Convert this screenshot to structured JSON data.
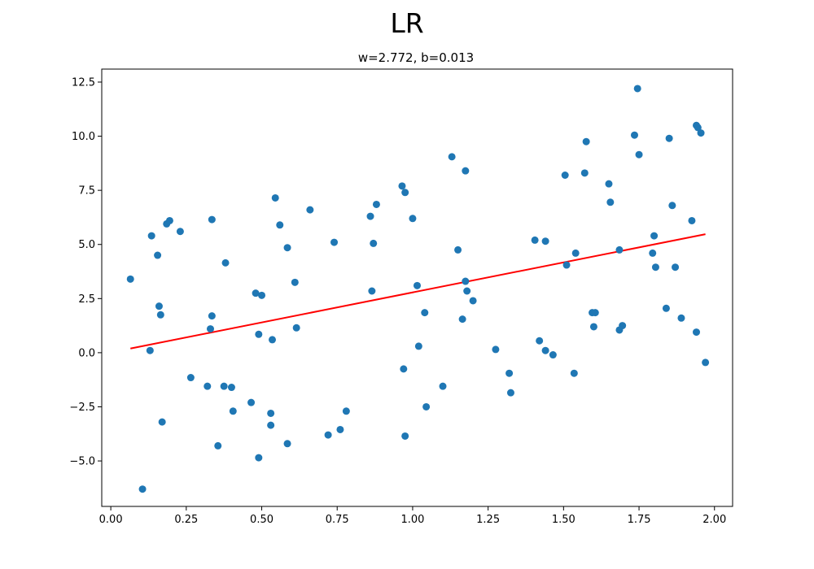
{
  "figure": {
    "suptitle": "LR"
  },
  "chart_data": {
    "type": "scatter",
    "title": "w=2.772, b=0.013",
    "xlabel": "",
    "ylabel": "",
    "xlim": [
      -0.03,
      2.06
    ],
    "ylim": [
      -7.1,
      13.1
    ],
    "xticks": [
      "0.00",
      "0.25",
      "0.50",
      "0.75",
      "1.00",
      "1.25",
      "1.50",
      "1.75",
      "2.00"
    ],
    "xtick_values": [
      0,
      0.25,
      0.5,
      0.75,
      1.0,
      1.25,
      1.5,
      1.75,
      2.0
    ],
    "yticks": [
      "−5.0",
      "−2.5",
      "0.0",
      "2.5",
      "5.0",
      "7.5",
      "10.0",
      "12.5"
    ],
    "ytick_values": [
      -5.0,
      -2.5,
      0.0,
      2.5,
      5.0,
      7.5,
      10.0,
      12.5
    ],
    "grid": false,
    "colors": {
      "points": "#1f77b4",
      "fit_line": "#ff0000"
    },
    "fit_line": {
      "w": 2.772,
      "b": 0.013,
      "x": [
        0.065,
        1.97
      ]
    },
    "points": {
      "x": [
        0.065,
        0.105,
        0.13,
        0.135,
        0.155,
        0.16,
        0.165,
        0.17,
        0.185,
        0.195,
        0.23,
        0.265,
        0.32,
        0.33,
        0.335,
        0.335,
        0.355,
        0.375,
        0.38,
        0.4,
        0.405,
        0.465,
        0.48,
        0.49,
        0.49,
        0.5,
        0.53,
        0.53,
        0.535,
        0.545,
        0.56,
        0.585,
        0.585,
        0.61,
        0.615,
        0.66,
        0.72,
        0.74,
        0.76,
        0.78,
        0.86,
        0.865,
        0.87,
        0.88,
        0.965,
        0.97,
        0.975,
        0.975,
        1.0,
        1.015,
        1.02,
        1.04,
        1.045,
        1.1,
        1.13,
        1.15,
        1.165,
        1.175,
        1.175,
        1.18,
        1.2,
        1.275,
        1.32,
        1.325,
        1.405,
        1.42,
        1.44,
        1.44,
        1.465,
        1.505,
        1.51,
        1.535,
        1.54,
        1.57,
        1.575,
        1.595,
        1.6,
        1.605,
        1.65,
        1.655,
        1.685,
        1.685,
        1.695,
        1.735,
        1.745,
        1.75,
        1.795,
        1.8,
        1.805,
        1.84,
        1.85,
        1.86,
        1.87,
        1.89,
        1.925,
        1.94,
        1.94,
        1.945,
        1.955,
        1.97
      ],
      "y": [
        3.4,
        -6.3,
        0.1,
        5.4,
        4.5,
        2.15,
        1.75,
        -3.2,
        5.95,
        6.1,
        5.6,
        -1.15,
        -1.55,
        1.1,
        1.7,
        6.15,
        -4.3,
        -1.55,
        4.15,
        -1.6,
        -2.7,
        -2.3,
        2.75,
        0.85,
        -4.85,
        2.65,
        -2.8,
        -3.35,
        0.6,
        7.15,
        5.9,
        4.85,
        -4.2,
        3.25,
        1.15,
        6.6,
        -3.8,
        5.1,
        -3.55,
        -2.7,
        6.3,
        2.85,
        5.05,
        6.85,
        7.7,
        -0.75,
        7.4,
        -3.85,
        6.2,
        3.1,
        0.3,
        1.85,
        -2.5,
        -1.55,
        9.05,
        4.75,
        1.55,
        3.3,
        8.4,
        2.85,
        2.4,
        0.15,
        -0.95,
        -1.85,
        5.2,
        0.55,
        5.15,
        0.1,
        -0.1,
        8.2,
        4.05,
        -0.95,
        4.6,
        8.3,
        9.75,
        1.85,
        1.2,
        1.85,
        7.8,
        6.95,
        4.75,
        1.05,
        1.25,
        10.05,
        12.2,
        9.15,
        4.6,
        5.4,
        3.95,
        2.05,
        9.9,
        6.8,
        3.95,
        1.6,
        6.1,
        10.5,
        0.95,
        10.4,
        10.15,
        -0.45
      ]
    }
  }
}
